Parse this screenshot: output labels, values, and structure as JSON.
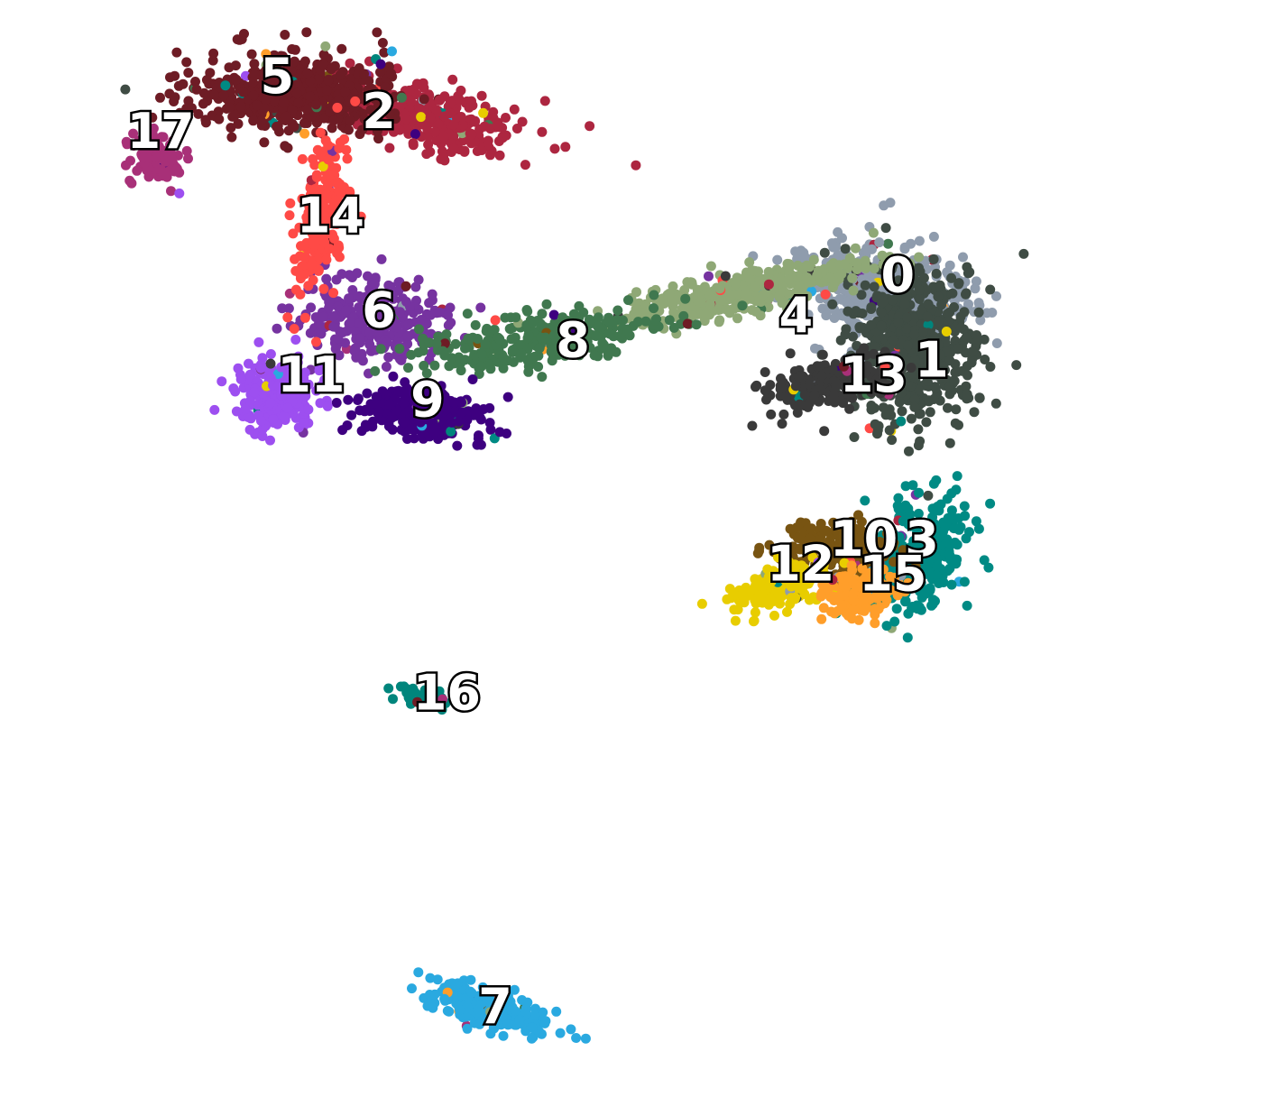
{
  "chart_data": {
    "type": "scatter",
    "title": "",
    "xlabel": "",
    "ylabel": "",
    "axes_visible": false,
    "grid": false,
    "legend": "on-data labels",
    "xlim": [
      -12,
      12
    ],
    "ylim": [
      -10.5,
      10
    ],
    "clusters": [
      {
        "id": "0",
        "label": "0",
        "color": "#8f9cad",
        "x": 5.2,
        "y": 5.0,
        "label_x": 5.4,
        "label_y": 5.3,
        "n": 520
      },
      {
        "id": "1",
        "label": "1",
        "color": "#3f4c44",
        "x": 5.7,
        "y": 3.9,
        "label_x": 6.1,
        "label_y": 3.6,
        "n": 620
      },
      {
        "id": "2",
        "label": "2",
        "color": "#ad2640",
        "x": -4.6,
        "y": 8.6,
        "label_x": -5.3,
        "label_y": 8.6,
        "n": 380
      },
      {
        "id": "3",
        "label": "3",
        "color": "#008a84",
        "x": 5.9,
        "y": -0.2,
        "label_x": 5.9,
        "label_y": 0.0,
        "n": 300
      },
      {
        "id": "4",
        "label": "4",
        "color": "#8fa876",
        "x": 2.1,
        "y": 5.0,
        "label_x": 3.3,
        "label_y": 4.5,
        "n": 420
      },
      {
        "id": "5",
        "label": "5",
        "color": "#6e1c25",
        "x": -7.0,
        "y": 9.0,
        "label_x": -7.4,
        "label_y": 9.3,
        "n": 560
      },
      {
        "id": "6",
        "label": "6",
        "color": "#7633a0",
        "x": -5.4,
        "y": 4.5,
        "label_x": -5.3,
        "label_y": 4.6,
        "n": 300
      },
      {
        "id": "7",
        "label": "7",
        "color": "#2aa9e0",
        "x": -3.0,
        "y": -9.4,
        "label_x": -2.9,
        "label_y": -9.4,
        "n": 260
      },
      {
        "id": "8",
        "label": "8",
        "color": "#40784f",
        "x": -1.9,
        "y": 4.1,
        "label_x": -1.3,
        "label_y": 4.0,
        "n": 320
      },
      {
        "id": "9",
        "label": "9",
        "color": "#3e0080",
        "x": -4.4,
        "y": 2.6,
        "label_x": -4.3,
        "label_y": 2.8,
        "n": 320
      },
      {
        "id": "10",
        "label": "10",
        "color": "#785412",
        "x": 4.2,
        "y": -0.1,
        "label_x": 4.7,
        "label_y": 0.0,
        "n": 240
      },
      {
        "id": "11",
        "label": "11",
        "color": "#9d4ff0",
        "x": -7.4,
        "y": 3.0,
        "label_x": -6.7,
        "label_y": 3.3,
        "n": 260
      },
      {
        "id": "12",
        "label": "12",
        "color": "#e8cd00",
        "x": 3.0,
        "y": -0.9,
        "label_x": 3.4,
        "label_y": -0.5,
        "n": 200
      },
      {
        "id": "13",
        "label": "13",
        "color": "#3a3a3a",
        "x": 4.0,
        "y": 3.2,
        "label_x": 4.9,
        "label_y": 3.3,
        "n": 240
      },
      {
        "id": "14",
        "label": "14",
        "color": "#ff4a46",
        "x": -6.5,
        "y": 6.6,
        "label_x": -6.3,
        "label_y": 6.5,
        "n": 200
      },
      {
        "id": "15",
        "label": "15",
        "color": "#ff9e2a",
        "x": 4.6,
        "y": -1.0,
        "label_x": 5.3,
        "label_y": -0.7,
        "n": 160
      },
      {
        "id": "16",
        "label": "16",
        "color": "#00857c",
        "x": -4.4,
        "y": -3.1,
        "label_x": -3.9,
        "label_y": -3.1,
        "n": 60
      },
      {
        "id": "17",
        "label": "17",
        "color": "#a83078",
        "x": -9.9,
        "y": 7.7,
        "label_x": -9.8,
        "label_y": 8.2,
        "n": 120
      }
    ]
  }
}
